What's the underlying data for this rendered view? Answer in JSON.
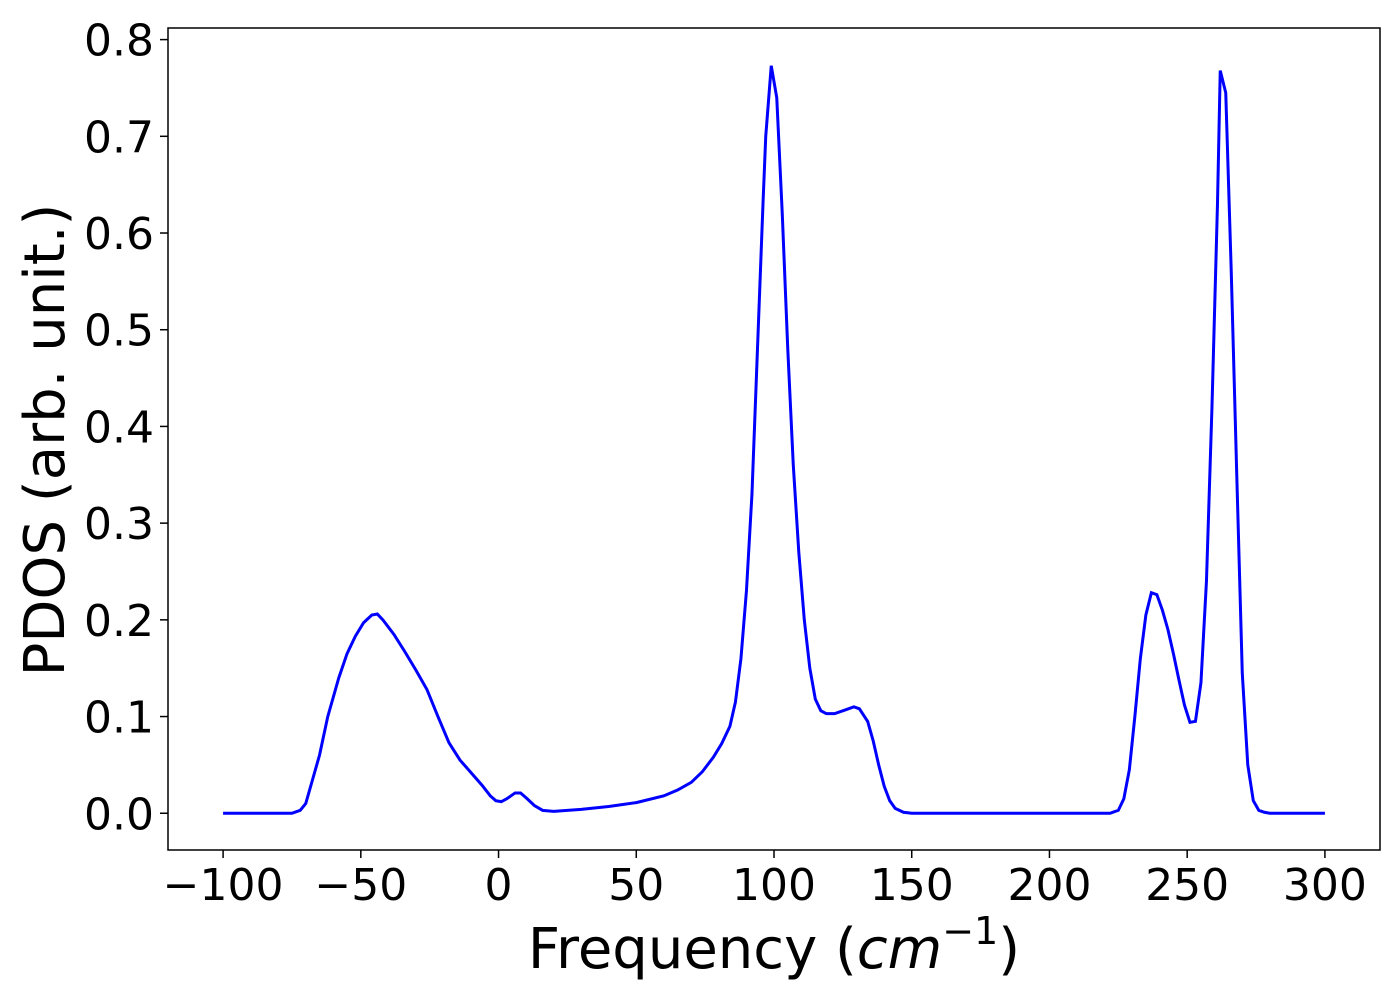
{
  "chart_data": {
    "type": "line",
    "xlabel": {
      "text": "Frequency (",
      "unit": "cm",
      "exponent": "−1",
      "close": ")"
    },
    "ylabel": "PDOS (arb. unit.)",
    "xlim": [
      -120,
      320
    ],
    "ylim": [
      -0.038,
      0.812
    ],
    "xticks": [
      {
        "value": -100,
        "label": "−100"
      },
      {
        "value": -50,
        "label": "−50"
      },
      0,
      50,
      100,
      150,
      200,
      250,
      300
    ],
    "yticks": [
      {
        "value": 0,
        "label": "0.0"
      },
      0.1,
      0.2,
      0.3,
      0.4,
      0.5,
      0.6,
      0.7,
      0.8
    ],
    "grid": false,
    "x": [
      -100,
      -75,
      -72,
      -70,
      -68,
      -65,
      -62,
      -58,
      -55,
      -52,
      -49,
      -46,
      -44,
      -42,
      -38,
      -34,
      -30,
      -26,
      -22,
      -18,
      -14,
      -10,
      -6,
      -3,
      -1,
      1,
      3,
      6,
      8,
      10,
      13,
      16,
      20,
      30,
      40,
      50,
      60,
      65,
      70,
      74,
      78,
      81,
      84,
      86,
      88,
      90,
      92,
      94,
      96,
      97,
      99,
      101,
      103,
      105,
      107,
      109,
      111,
      113,
      115,
      117,
      119,
      122,
      126,
      129,
      131,
      134,
      136,
      138,
      140,
      142,
      144,
      147,
      150,
      222,
      225,
      227,
      229,
      231,
      233,
      235,
      237,
      239,
      241,
      243,
      245,
      247,
      249,
      251,
      253,
      255,
      257,
      259,
      261,
      262,
      264,
      266,
      268,
      270,
      272,
      274,
      276,
      278,
      280,
      300
    ],
    "series": [
      {
        "color": "#0000ff",
        "values": [
          0,
          0,
          0.003,
          0.01,
          0.03,
          0.06,
          0.1,
          0.14,
          0.165,
          0.183,
          0.197,
          0.205,
          0.206,
          0.2,
          0.185,
          0.167,
          0.148,
          0.128,
          0.1,
          0.073,
          0.055,
          0.042,
          0.029,
          0.018,
          0.013,
          0.012,
          0.015,
          0.021,
          0.021,
          0.016,
          0.008,
          0.003,
          0.002,
          0.004,
          0.007,
          0.011,
          0.018,
          0.024,
          0.032,
          0.043,
          0.058,
          0.072,
          0.09,
          0.115,
          0.16,
          0.23,
          0.33,
          0.48,
          0.63,
          0.7,
          0.773,
          0.74,
          0.62,
          0.48,
          0.36,
          0.27,
          0.2,
          0.15,
          0.118,
          0.106,
          0.103,
          0.103,
          0.107,
          0.11,
          0.108,
          0.095,
          0.075,
          0.05,
          0.028,
          0.013,
          0.005,
          0.001,
          0,
          0,
          0.003,
          0.015,
          0.045,
          0.1,
          0.16,
          0.205,
          0.228,
          0.226,
          0.21,
          0.19,
          0.165,
          0.138,
          0.112,
          0.094,
          0.095,
          0.135,
          0.24,
          0.42,
          0.63,
          0.768,
          0.745,
          0.56,
          0.35,
          0.145,
          0.05,
          0.013,
          0.003,
          0.001,
          0,
          0
        ]
      }
    ]
  }
}
